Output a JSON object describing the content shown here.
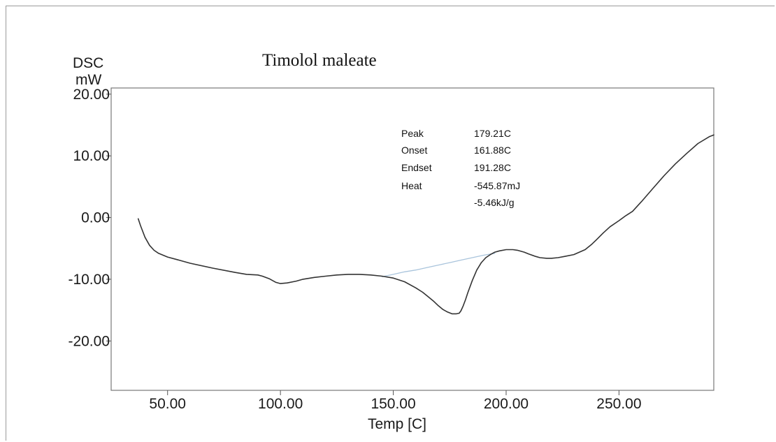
{
  "chart_data": {
    "type": "line",
    "title": "Timolol maleate",
    "ylabel": "DSC",
    "yunit": "mW",
    "xlabel": "Temp  [C]",
    "xlim": [
      25,
      292
    ],
    "ylim": [
      -28,
      21
    ],
    "xticks": [
      {
        "value": 50,
        "label": "50.00"
      },
      {
        "value": 100,
        "label": "100.00"
      },
      {
        "value": 150,
        "label": "150.00"
      },
      {
        "value": 200,
        "label": "200.00"
      },
      {
        "value": 250,
        "label": "250.00"
      }
    ],
    "yticks": [
      {
        "value": 20,
        "label": "20.00"
      },
      {
        "value": 10,
        "label": "10.00"
      },
      {
        "value": 0,
        "label": "0.00"
      },
      {
        "value": -10,
        "label": "-10.00"
      },
      {
        "value": -20,
        "label": "-20.00"
      }
    ],
    "grid": false,
    "series": [
      {
        "color": "#333333",
        "x": [
          37,
          38,
          40,
          42,
          44,
          46,
          50,
          55,
          60,
          70,
          80,
          85,
          90,
          92,
          95,
          98,
          100,
          103,
          107,
          110,
          115,
          120,
          125,
          130,
          135,
          140,
          145,
          150,
          155,
          160,
          163,
          165,
          168,
          170,
          172,
          174,
          176,
          178,
          179.21,
          180,
          181,
          182,
          183,
          185,
          187,
          189,
          191,
          193,
          195,
          197,
          200,
          203,
          205,
          208,
          210,
          213,
          215,
          218,
          220,
          223,
          226,
          230,
          235,
          238,
          240,
          243,
          246,
          250,
          253,
          256,
          260,
          265,
          270,
          275,
          280,
          285,
          290,
          292
        ],
        "y": [
          -0.2,
          -1.3,
          -3.2,
          -4.5,
          -5.3,
          -5.8,
          -6.4,
          -6.9,
          -7.4,
          -8.2,
          -8.9,
          -9.2,
          -9.3,
          -9.5,
          -9.9,
          -10.5,
          -10.7,
          -10.6,
          -10.3,
          -10.0,
          -9.7,
          -9.5,
          -9.3,
          -9.2,
          -9.2,
          -9.3,
          -9.5,
          -9.8,
          -10.4,
          -11.4,
          -12.1,
          -12.7,
          -13.6,
          -14.3,
          -14.9,
          -15.3,
          -15.6,
          -15.6,
          -15.5,
          -15.1,
          -14.3,
          -13.3,
          -12.2,
          -10.2,
          -8.5,
          -7.3,
          -6.5,
          -6.0,
          -5.6,
          -5.4,
          -5.2,
          -5.2,
          -5.3,
          -5.6,
          -5.9,
          -6.3,
          -6.5,
          -6.6,
          -6.6,
          -6.5,
          -6.3,
          -6.0,
          -5.2,
          -4.3,
          -3.6,
          -2.5,
          -1.5,
          -0.5,
          0.3,
          1.0,
          2.6,
          4.7,
          6.8,
          8.7,
          10.4,
          12.0,
          13.1,
          13.4
        ]
      },
      {
        "color": "#a9c4dc",
        "x": [
          145,
          150,
          155,
          160,
          165,
          170,
          175,
          180,
          185,
          190,
          195
        ],
        "y": [
          -9.6,
          -9.2,
          -8.8,
          -8.5,
          -8.1,
          -7.7,
          -7.3,
          -6.9,
          -6.5,
          -6.1,
          -5.8
        ]
      }
    ],
    "annotation": {
      "rows": [
        {
          "label": "Peak",
          "value": "179.21C"
        },
        {
          "label": "Onset",
          "value": "161.88C"
        },
        {
          "label": "Endset",
          "value": "191.28C"
        },
        {
          "label": "Heat",
          "value": "-545.87mJ"
        },
        {
          "label": "",
          "value": "-5.46kJ/g"
        }
      ]
    }
  }
}
